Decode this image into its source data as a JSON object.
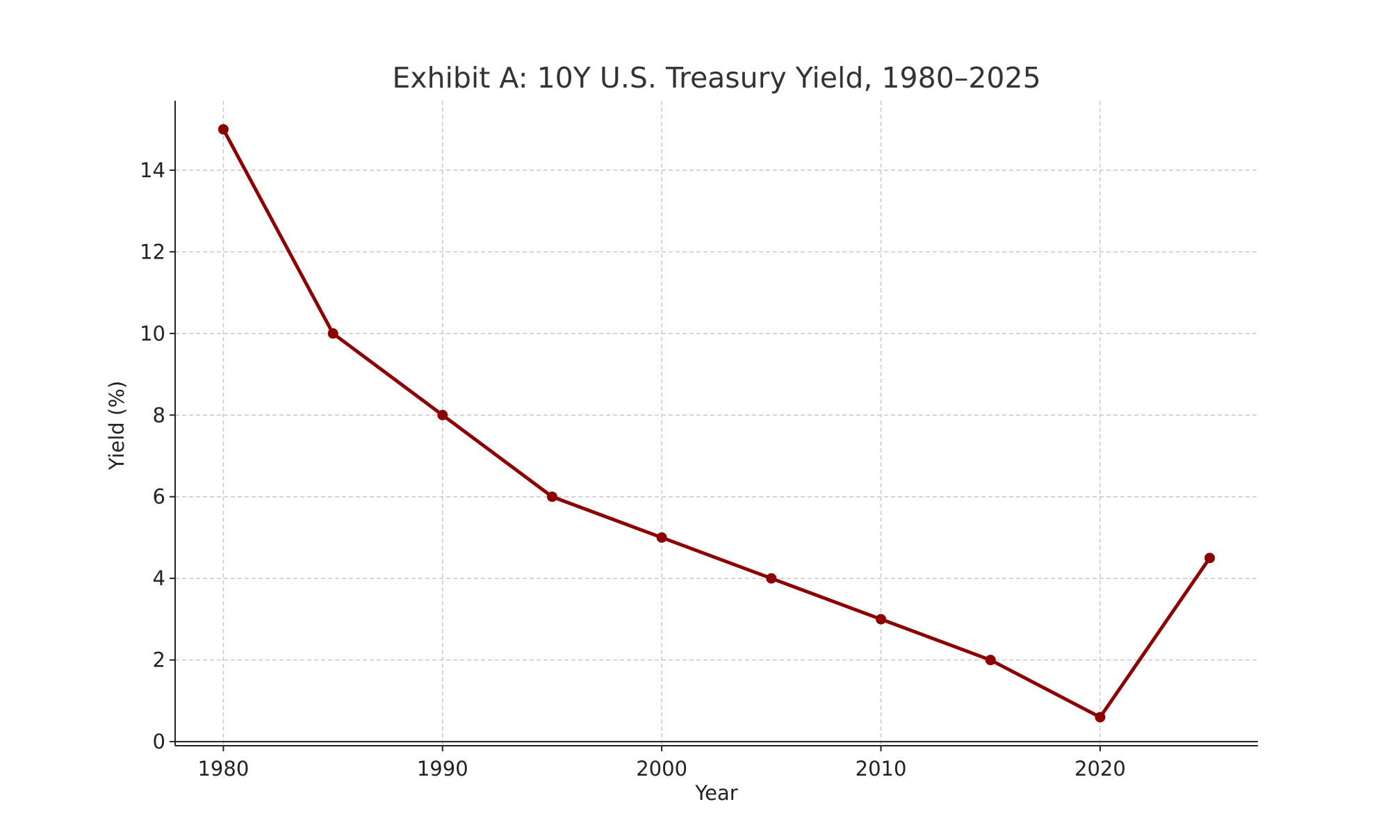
{
  "chart_data": {
    "type": "line",
    "title": "Exhibit A: 10Y U.S. Treasury Yield, 1980–2025",
    "xlabel": "Year",
    "ylabel": "Yield (%)",
    "x": [
      1980,
      1985,
      1990,
      1995,
      2000,
      2005,
      2010,
      2015,
      2020,
      2025
    ],
    "series": [
      {
        "values": [
          15,
          10,
          8,
          6,
          5,
          4,
          3,
          2,
          0.6,
          4.5
        ],
        "color": "#8b0000"
      }
    ],
    "xlim": [
      1977.8,
      2027.2
    ],
    "ylim": [
      -0.1,
      15.7
    ],
    "xticks": [
      1980,
      1990,
      2000,
      2010,
      2020
    ],
    "yticks": [
      0,
      2,
      4,
      6,
      8,
      10,
      12,
      14
    ],
    "grid": true,
    "legend": "none"
  }
}
